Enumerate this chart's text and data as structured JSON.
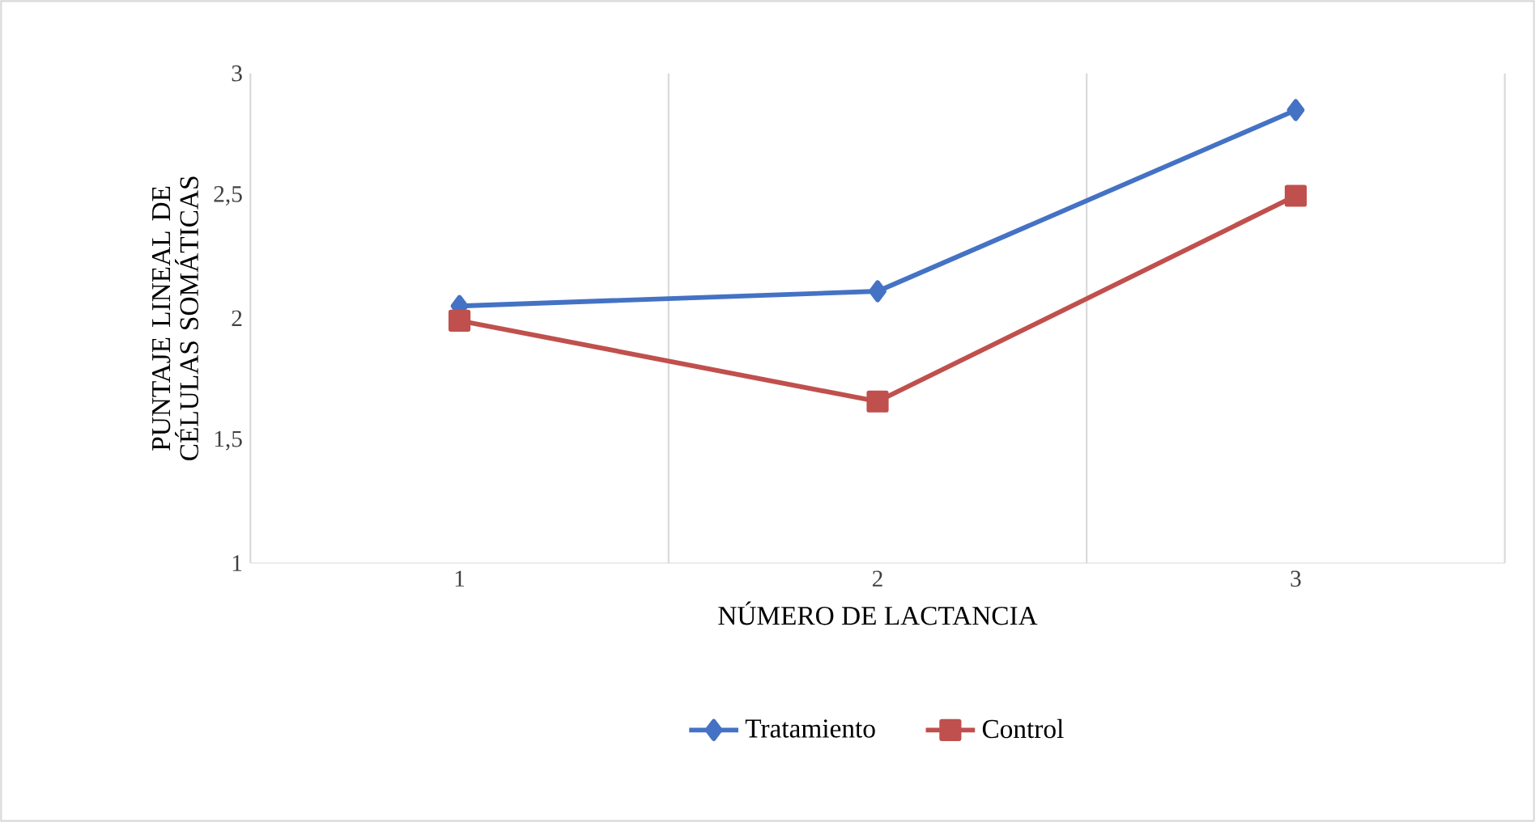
{
  "chart_data": {
    "type": "line",
    "xlabel": "NÚMERO DE LACTANCIA",
    "ylabel": "PUNTAJE LINEAL DE CÉLULAS SOMÁTICAS",
    "categories": [
      "1",
      "2",
      "3"
    ],
    "series": [
      {
        "name": "Tratamiento",
        "color": "#4472c4",
        "marker": "diamond",
        "values": [
          2.05,
          2.11,
          2.85
        ]
      },
      {
        "name": "Control",
        "color": "#c0504d",
        "marker": "square",
        "values": [
          1.99,
          1.66,
          2.5
        ]
      }
    ],
    "ylim": [
      1,
      3
    ],
    "yticks": [
      1,
      {
        "value": 1.5,
        "label": "1,5"
      },
      2,
      {
        "value": 2.5,
        "label": "2,5"
      },
      3
    ],
    "grid": "x",
    "legend": "bottom"
  }
}
